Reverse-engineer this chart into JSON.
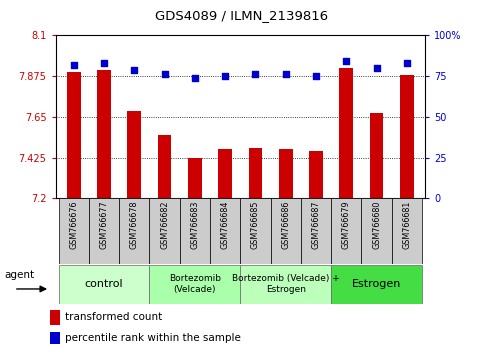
{
  "title": "GDS4089 / ILMN_2139816",
  "samples": [
    "GSM766676",
    "GSM766677",
    "GSM766678",
    "GSM766682",
    "GSM766683",
    "GSM766684",
    "GSM766685",
    "GSM766686",
    "GSM766687",
    "GSM766679",
    "GSM766680",
    "GSM766681"
  ],
  "bar_values": [
    7.9,
    7.91,
    7.68,
    7.55,
    7.42,
    7.47,
    7.48,
    7.47,
    7.46,
    7.92,
    7.67,
    7.88
  ],
  "percentile_values": [
    82,
    83,
    79,
    76,
    74,
    75,
    76,
    76,
    75,
    84,
    80,
    83
  ],
  "ymin": 7.2,
  "ymax": 8.1,
  "yticks": [
    7.2,
    7.425,
    7.65,
    7.875,
    8.1
  ],
  "ytick_labels": [
    "7.2",
    "7.425",
    "7.65",
    "7.875",
    "8.1"
  ],
  "right_yticks": [
    0,
    25,
    50,
    75,
    100
  ],
  "right_ytick_labels": [
    "0",
    "25",
    "50",
    "75",
    "100%"
  ],
  "bar_color": "#cc0000",
  "dot_color": "#0000cc",
  "groups": [
    {
      "label": "control",
      "start": 0,
      "end": 3,
      "color": "#ccffcc"
    },
    {
      "label": "Bortezomib\n(Velcade)",
      "start": 3,
      "end": 6,
      "color": "#aaffaa"
    },
    {
      "label": "Bortezomib (Velcade) +\nEstrogen",
      "start": 6,
      "end": 9,
      "color": "#bbffbb"
    },
    {
      "label": "Estrogen",
      "start": 9,
      "end": 12,
      "color": "#44dd44"
    }
  ],
  "sample_bg_color": "#cccccc",
  "agent_label": "agent",
  "legend_bar_label": "transformed count",
  "legend_dot_label": "percentile rank within the sample",
  "bar_width": 0.45
}
